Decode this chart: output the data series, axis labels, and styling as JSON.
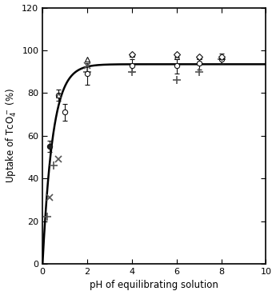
{
  "xlabel": "pH of equilibrating solution",
  "ylabel": "Uptake of TcO$_4^-$ (%)",
  "xlim": [
    0,
    10
  ],
  "ylim": [
    0,
    120
  ],
  "xticks": [
    0,
    2,
    4,
    6,
    8,
    10
  ],
  "yticks": [
    0,
    20,
    40,
    60,
    80,
    100,
    120
  ],
  "curve_color": "#000000",
  "curve_a": 93.5,
  "curve_b": 2.2,
  "bg_color": "#ffffff",
  "data_circle": {
    "x": [
      0.3,
      0.7,
      1.0,
      2.0,
      4.0,
      6.0,
      7.0,
      8.0
    ],
    "y": [
      55,
      79,
      71,
      89,
      93,
      93,
      94,
      96
    ],
    "yerr": [
      2.5,
      2.5,
      4,
      5,
      3,
      4,
      3,
      2.5
    ],
    "filled": [
      true,
      false,
      false,
      false,
      false,
      false,
      false,
      false
    ]
  },
  "data_triangle": {
    "x": [
      0.7,
      2.0,
      4.0,
      6.0,
      7.0,
      8.0
    ],
    "y": [
      79,
      96,
      98,
      97,
      97,
      97
    ]
  },
  "data_diamond": {
    "x": [
      4.0,
      6.0,
      7.0,
      8.0
    ],
    "y": [
      98,
      98,
      97,
      97
    ]
  },
  "data_plus": {
    "x": [
      0.2,
      0.5,
      2.0,
      4.0,
      6.0,
      7.0,
      8.0
    ],
    "y": [
      22,
      46,
      90,
      90,
      86,
      90,
      96
    ]
  },
  "data_cross": {
    "x": [
      0.3,
      0.7,
      2.0
    ],
    "y": [
      31,
      49,
      93
    ]
  },
  "figsize": [
    3.45,
    3.69
  ],
  "dpi": 100
}
